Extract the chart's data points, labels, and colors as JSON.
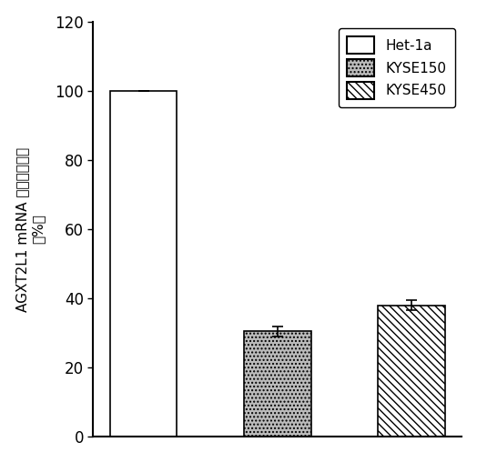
{
  "categories": [
    "Het-1a",
    "KYSE150",
    "KYSE450"
  ],
  "values": [
    100.0,
    30.5,
    38.0
  ],
  "errors": [
    0.0,
    1.5,
    1.5
  ],
  "bar_colors": [
    "white",
    "#bbbbbb",
    "white"
  ],
  "bar_hatches": [
    "",
    "....",
    "\\\\\\\\"
  ],
  "bar_edgecolors": [
    "black",
    "black",
    "black"
  ],
  "ylabel_top": "（%）",
  "ylabel_bottom": "AGXT2L1 mRNA 的相对表达量",
  "ylim": [
    0,
    120
  ],
  "yticks": [
    0,
    20,
    40,
    60,
    80,
    100,
    120
  ],
  "legend_labels": [
    "Het-1a",
    "KYSE150",
    "KYSE450"
  ],
  "legend_colors": [
    "white",
    "#bbbbbb",
    "white"
  ],
  "legend_hatches": [
    "",
    "....",
    "\\\\\\\\"
  ],
  "bar_width": 0.5,
  "figsize": [
    5.24,
    5.08
  ],
  "dpi": 100
}
